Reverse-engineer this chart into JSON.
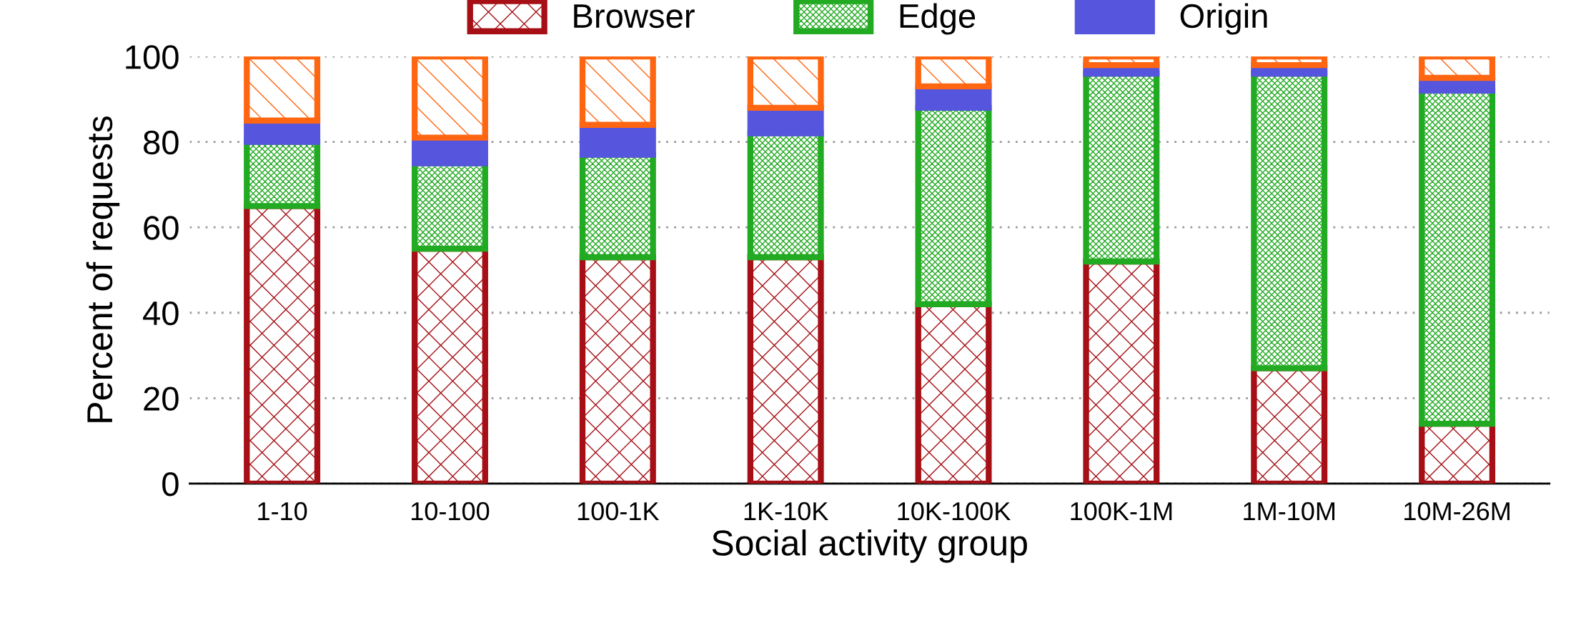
{
  "chart_data": {
    "type": "bar",
    "stacked": true,
    "xlabel": "Social activity group",
    "ylabel": "Percent of requests",
    "categories": [
      "1-10",
      "10-100",
      "100-1K",
      "1K-10K",
      "10K-100K",
      "100K-1M",
      "1M-10M",
      "10M-26M"
    ],
    "series": [
      {
        "name": "Browser",
        "color": "#a50f15",
        "values": [
          65,
          55,
          53,
          53,
          42,
          52,
          27,
          14
        ]
      },
      {
        "name": "Edge",
        "color": "#22aa22",
        "values": [
          15,
          20,
          24,
          29,
          46,
          44,
          69,
          78
        ]
      },
      {
        "name": "Origin",
        "color": "#5555dd",
        "values": [
          5,
          6,
          7,
          6,
          5,
          2,
          2,
          3
        ]
      },
      {
        "color": "#ff6611",
        "values": [
          15,
          19,
          16,
          12,
          7,
          2,
          2,
          5
        ]
      }
    ],
    "ylim": [
      0,
      100
    ],
    "yticks": [
      0,
      20,
      40,
      60,
      80,
      100
    ],
    "grid": "y",
    "legend": "top"
  }
}
